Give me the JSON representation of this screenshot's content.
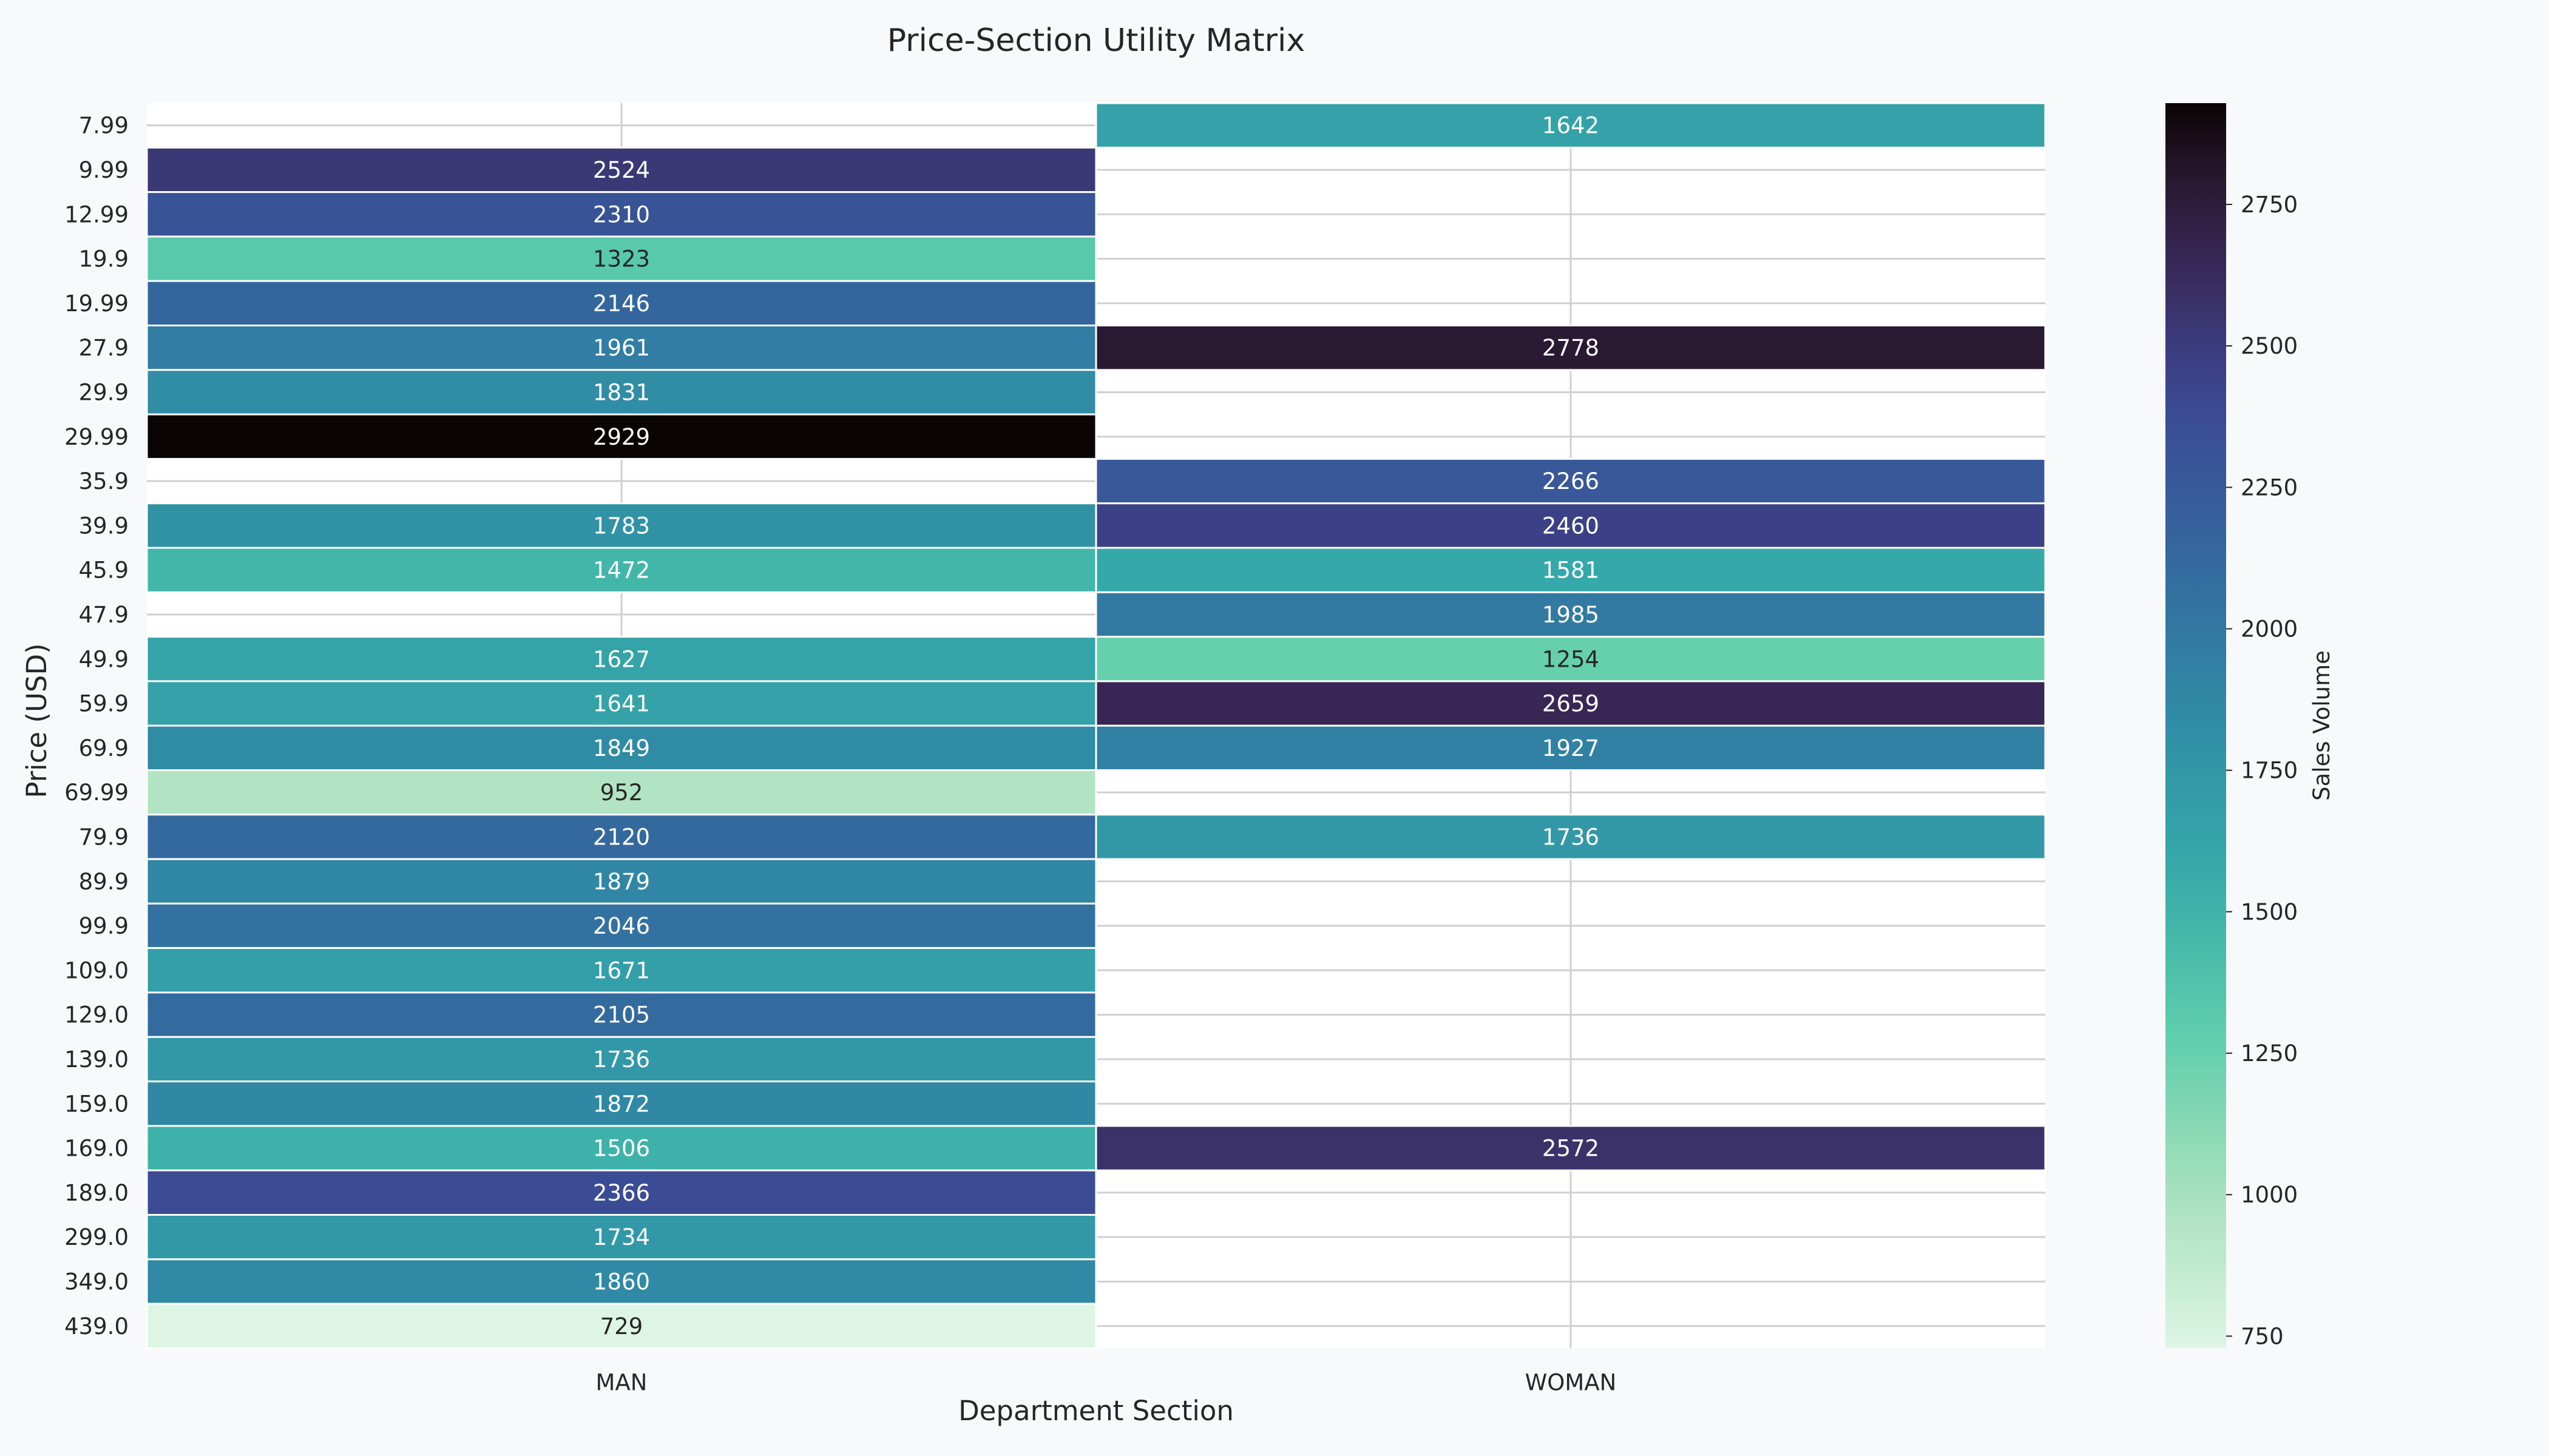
{
  "chart_data": {
    "type": "heatmap",
    "title": "Price-Section Utility Matrix",
    "xlabel": "Department Section",
    "ylabel": "Price (USD)",
    "x_categories": [
      "MAN",
      "WOMAN"
    ],
    "y_categories": [
      "7.99",
      "9.99",
      "12.99",
      "19.9",
      "19.99",
      "27.9",
      "29.9",
      "29.99",
      "35.9",
      "39.9",
      "45.9",
      "47.9",
      "49.9",
      "59.9",
      "69.9",
      "69.99",
      "79.9",
      "89.9",
      "99.9",
      "109.0",
      "129.0",
      "139.0",
      "159.0",
      "169.0",
      "189.0",
      "299.0",
      "349.0",
      "439.0"
    ],
    "values": [
      [
        null,
        1642
      ],
      [
        2524,
        null
      ],
      [
        2310,
        null
      ],
      [
        1323,
        null
      ],
      [
        2146,
        null
      ],
      [
        1961,
        2778
      ],
      [
        1831,
        null
      ],
      [
        2929,
        null
      ],
      [
        null,
        2266
      ],
      [
        1783,
        2460
      ],
      [
        1472,
        1581
      ],
      [
        null,
        1985
      ],
      [
        1627,
        1254
      ],
      [
        1641,
        2659
      ],
      [
        1849,
        1927
      ],
      [
        952,
        null
      ],
      [
        2120,
        1736
      ],
      [
        1879,
        null
      ],
      [
        2046,
        null
      ],
      [
        1671,
        null
      ],
      [
        2105,
        null
      ],
      [
        1736,
        null
      ],
      [
        1872,
        null
      ],
      [
        1506,
        2572
      ],
      [
        2366,
        null
      ],
      [
        1734,
        null
      ],
      [
        1860,
        null
      ],
      [
        729,
        null
      ]
    ],
    "colorbar": {
      "label": "Sales Volume",
      "range": [
        729,
        2929
      ],
      "ticks": [
        750,
        1000,
        1250,
        1500,
        1750,
        2000,
        2250,
        2500,
        2750
      ]
    },
    "colormap": "mako_r",
    "annotations": true,
    "grid": true
  }
}
